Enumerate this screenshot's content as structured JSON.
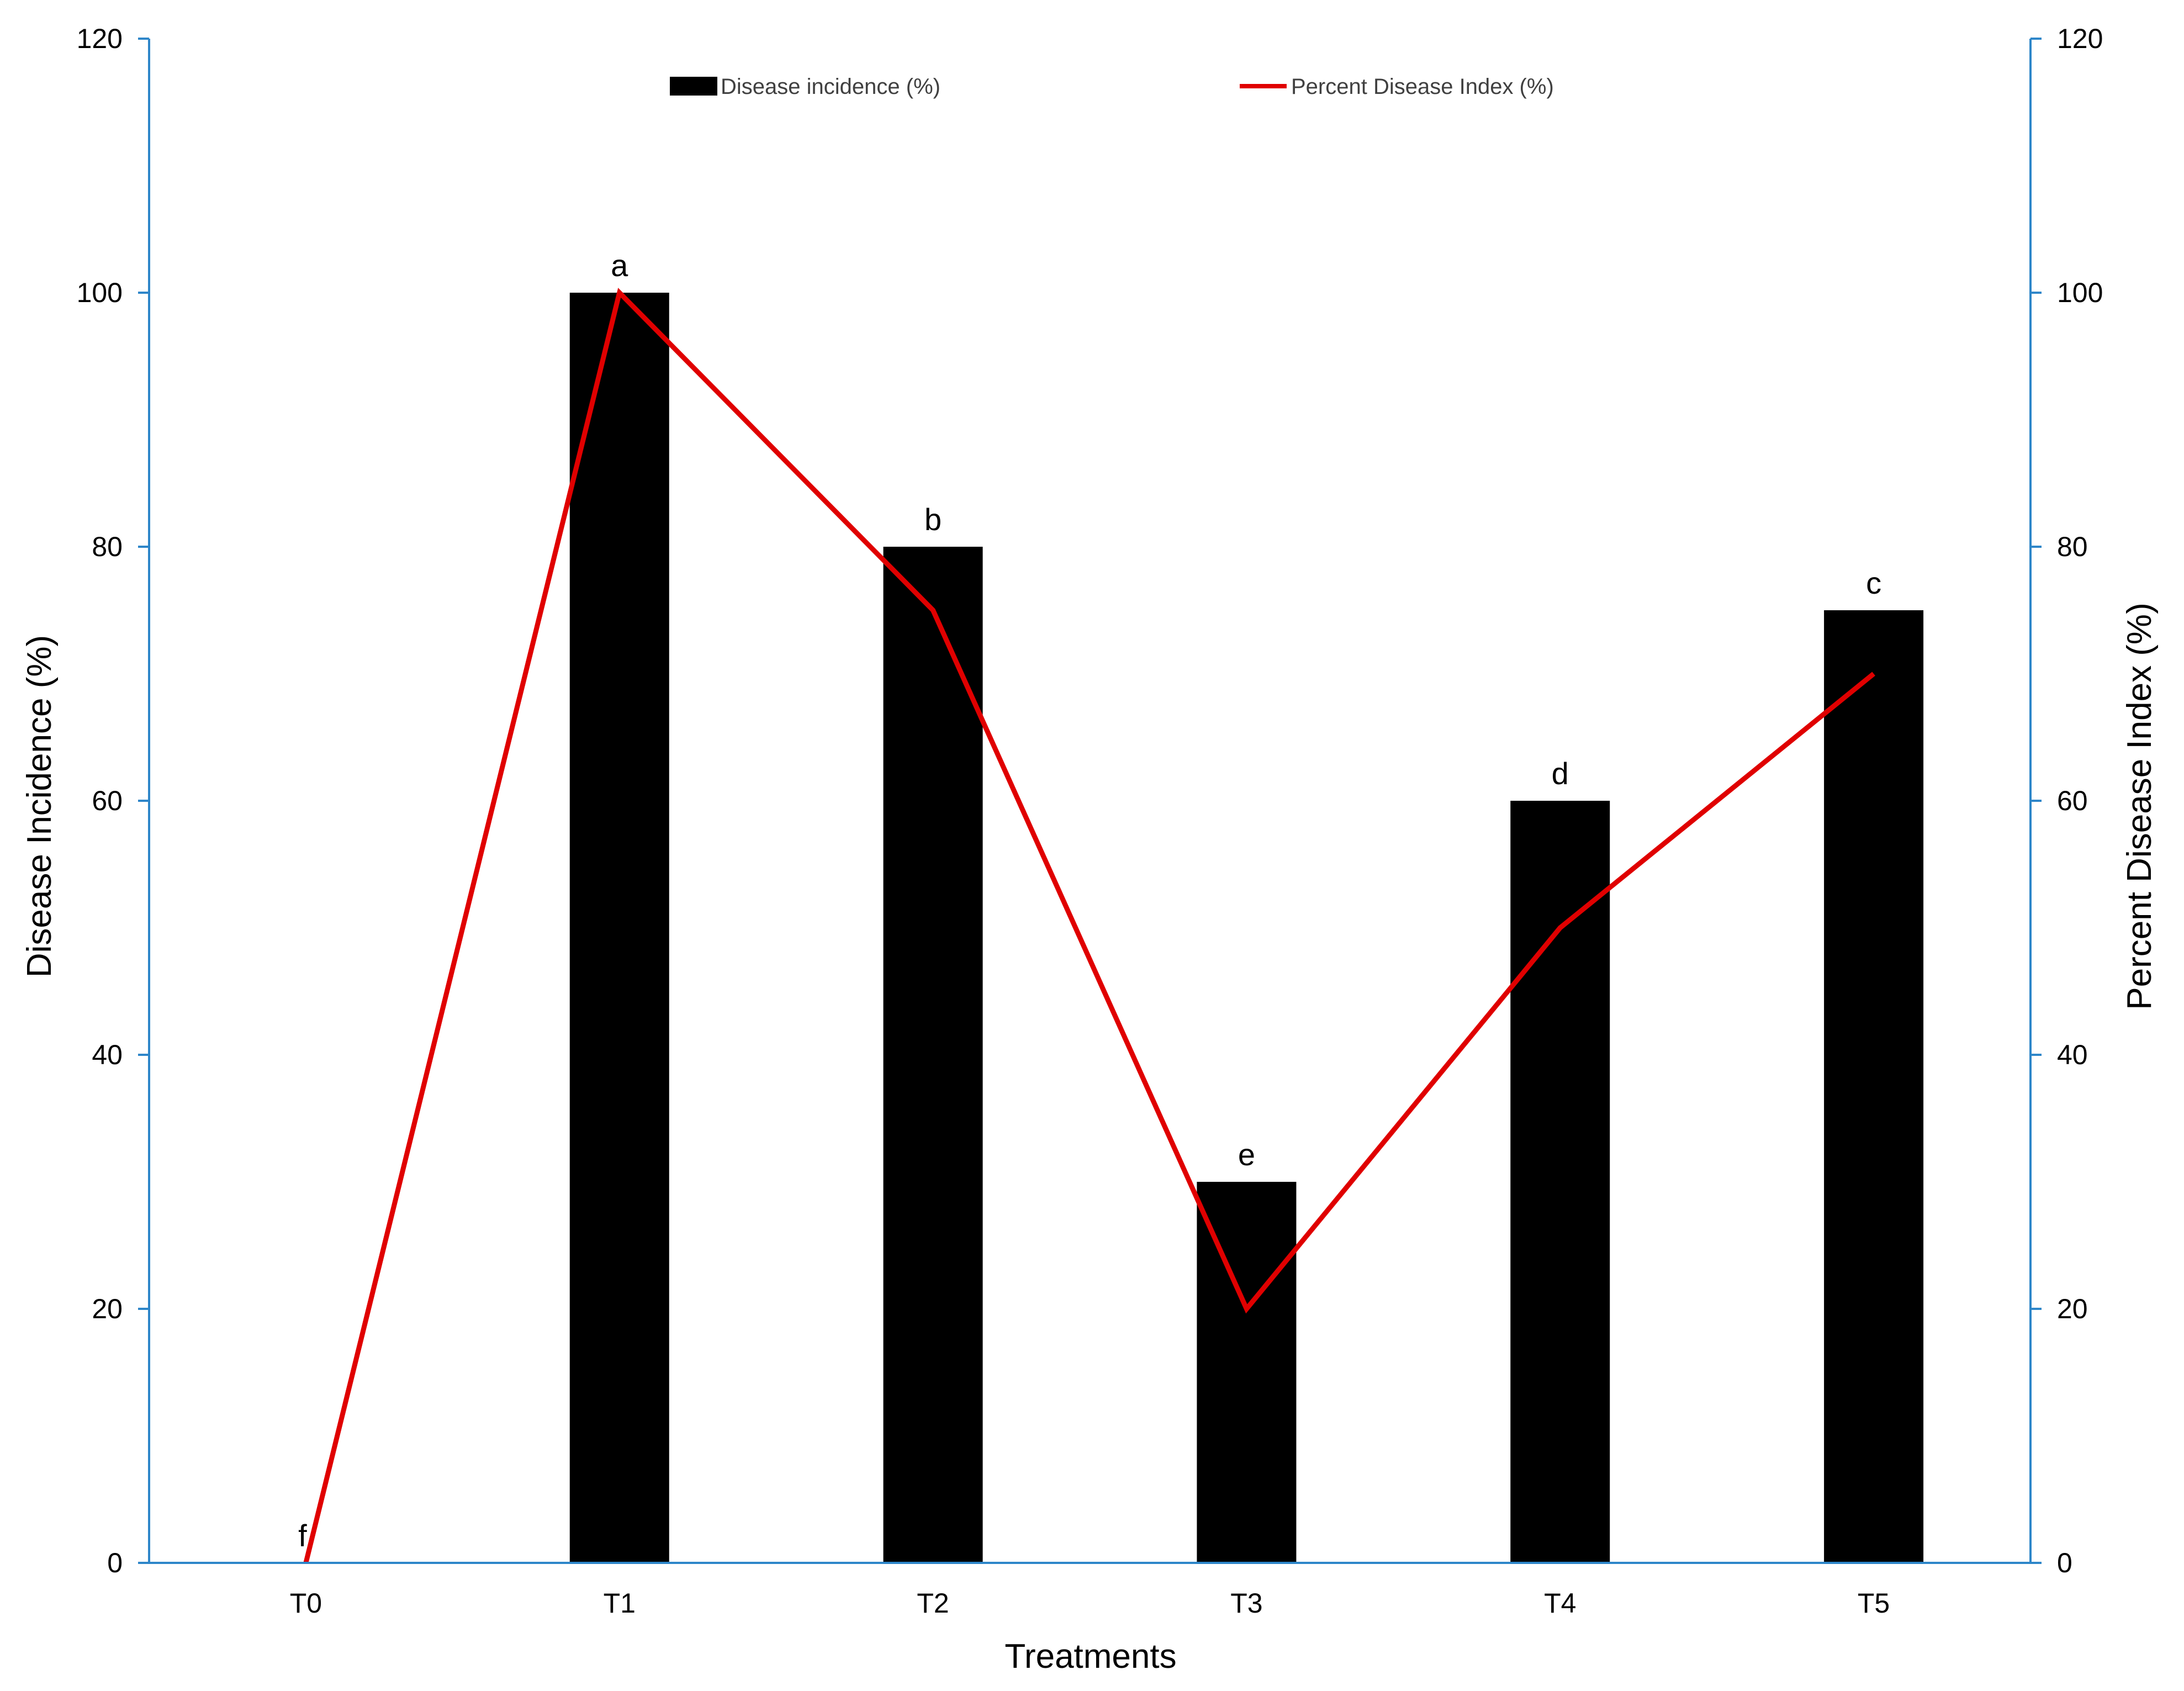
{
  "chart_data": {
    "type": "bar",
    "categories": [
      "T0",
      "T1",
      "T2",
      "T3",
      "T4",
      "T5"
    ],
    "series": [
      {
        "name": "Disease incidence (%)",
        "type": "bar",
        "axis": "left",
        "values": [
          0,
          100,
          80,
          30,
          60,
          75
        ],
        "color": "#000000"
      },
      {
        "name": "Percent Disease Index (%)",
        "type": "line",
        "axis": "right",
        "values": [
          0,
          100,
          75,
          20,
          50,
          70
        ],
        "color": "#e00000"
      }
    ],
    "bar_letters": [
      "f",
      "a",
      "b",
      "e",
      "d",
      "c"
    ],
    "xlabel": "Treatments",
    "ylabel": "Disease Incidence (%)",
    "y2label": "Percent Disease Index (%)",
    "ylim": [
      0,
      120
    ],
    "y2lim": [
      0,
      120
    ],
    "yticks": [
      "0",
      "20",
      "40",
      "60",
      "80",
      "100",
      "120"
    ],
    "y2ticks": [
      "0",
      "20",
      "40",
      "60",
      "80",
      "100",
      "120"
    ],
    "axis_color": "#2e86c9",
    "grid": false,
    "legend_position": "top"
  }
}
